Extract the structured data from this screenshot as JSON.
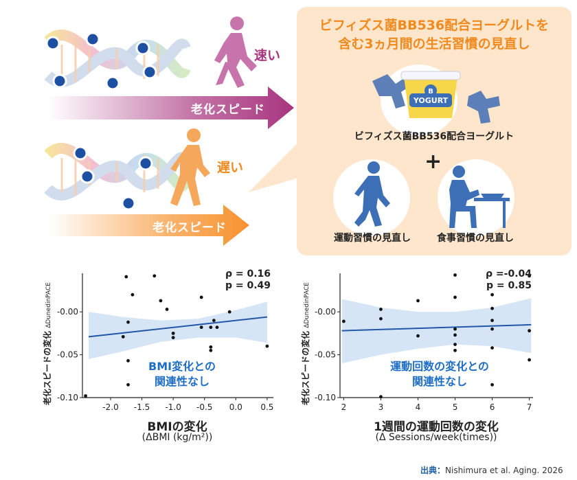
{
  "illustration": {
    "fast_speed_label": "老化スピード",
    "fast_word": "速い",
    "slow_speed_label": "老化スピード",
    "slow_word": "遅い",
    "colors": {
      "fast": "#a8357f",
      "slow": "#f7922f",
      "marker": "#1d4fa3"
    }
  },
  "intervention": {
    "title_line1": "ビフィズス菌BB536配合ヨーグルトを",
    "title_line2": "含む3ヵ月間の生活習慣の見直し",
    "yogurt_caption": "ビフィズス菌BB536配合ヨーグルト",
    "yogurt_cup_text": "YOGURT",
    "yogurt_badge": "B",
    "plus_sign": "+",
    "exercise_caption": "運動習慣の見直し",
    "diet_caption": "食事習慣の見直し",
    "icons": [
      "bifidobacteria-icon",
      "yogurt-cup-icon",
      "walking-person-icon",
      "eating-person-icon"
    ]
  },
  "chart_data": [
    {
      "type": "scatter",
      "ylabel": "老化スピードの変化",
      "ylabel_sub": "ΔDunedinPACE",
      "xlabel": "BMIの変化",
      "xlabel_sub": "(ΔBMI (kg/m²))",
      "xlim": [
        -2.45,
        0.6
      ],
      "ylim": [
        -0.1,
        0.045
      ],
      "x_ticks": [
        -2.0,
        -1.5,
        -1.0,
        -0.5,
        0.0,
        0.5
      ],
      "x_tick_labels": [
        "-2.0",
        "-1.5",
        "-1.0",
        "-0.5",
        "0.0",
        "0.5"
      ],
      "y_ticks": [
        0.0,
        -0.05,
        -0.1
      ],
      "y_tick_labels": [
        "-0.00",
        "-0.05",
        "-0.10"
      ],
      "stat_rho": "ρ = 0.16",
      "stat_p": "p = 0.49",
      "annotation_line1": "BMI変化との",
      "annotation_line2": "関連性なし",
      "trend": {
        "x": [
          -2.35,
          0.5
        ],
        "y": [
          -0.029,
          -0.006
        ]
      },
      "band": {
        "x": [
          -2.35,
          -1.8,
          -1.2,
          -0.6,
          0.0,
          0.5
        ],
        "upper": [
          0.0,
          -0.006,
          -0.01,
          -0.008,
          0.002,
          0.012
        ],
        "lower": [
          -0.055,
          -0.046,
          -0.035,
          -0.03,
          -0.03,
          -0.036
        ]
      },
      "points": [
        {
          "x": -2.4,
          "y": -0.098
        },
        {
          "x": -1.75,
          "y": 0.041
        },
        {
          "x": -1.65,
          "y": 0.02
        },
        {
          "x": -1.3,
          "y": 0.042
        },
        {
          "x": -1.2,
          "y": 0.013
        },
        {
          "x": -1.1,
          "y": 0.003
        },
        {
          "x": -1.72,
          "y": -0.012
        },
        {
          "x": -1.8,
          "y": -0.029
        },
        {
          "x": -1.72,
          "y": -0.057
        },
        {
          "x": -1.72,
          "y": -0.085
        },
        {
          "x": -1.0,
          "y": -0.025
        },
        {
          "x": -1.0,
          "y": -0.03
        },
        {
          "x": -0.55,
          "y": 0.017
        },
        {
          "x": -0.55,
          "y": -0.018
        },
        {
          "x": -0.4,
          "y": -0.018
        },
        {
          "x": -0.35,
          "y": -0.01
        },
        {
          "x": -0.4,
          "y": -0.041
        },
        {
          "x": -0.4,
          "y": -0.045
        },
        {
          "x": -0.3,
          "y": -0.018
        },
        {
          "x": -0.1,
          "y": 0.0
        },
        {
          "x": 0.5,
          "y": -0.04
        }
      ],
      "colors": {
        "trend": "#2156a8",
        "band": "#cfe0f3",
        "points": "#111111"
      }
    },
    {
      "type": "scatter",
      "ylabel": "老化スピードの変化",
      "ylabel_sub": "ΔDunedinPACE",
      "xlabel": "1週間の運動回数の変化",
      "xlabel_sub": "(Δ Sessions/week(times))",
      "xlim": [
        1.9,
        7.1
      ],
      "ylim": [
        -0.1,
        0.045
      ],
      "x_ticks": [
        2,
        3,
        4,
        5,
        6,
        7
      ],
      "x_tick_labels": [
        "2",
        "3",
        "4",
        "5",
        "6",
        "7"
      ],
      "y_ticks": [
        0.0,
        -0.05,
        -0.1
      ],
      "y_tick_labels": [
        "-0.00",
        "-0.05",
        "-0.10"
      ],
      "stat_rho": "ρ =-0.04",
      "stat_p": "p = 0.85",
      "annotation_line1": "運動回数の変化との",
      "annotation_line2": "関連性なし",
      "trend": {
        "x": [
          1.95,
          7.05
        ],
        "y": [
          -0.022,
          -0.015
        ]
      },
      "band": {
        "x": [
          1.95,
          3.0,
          4.0,
          5.0,
          6.0,
          7.05
        ],
        "upper": [
          0.015,
          0.005,
          0.0,
          0.0,
          0.005,
          0.016
        ],
        "lower": [
          -0.06,
          -0.05,
          -0.043,
          -0.038,
          -0.04,
          -0.048
        ]
      },
      "points": [
        {
          "x": 2.0,
          "y": -0.011
        },
        {
          "x": 3.0,
          "y": 0.003
        },
        {
          "x": 3.0,
          "y": -0.008
        },
        {
          "x": 3.0,
          "y": -0.099
        },
        {
          "x": 4.0,
          "y": 0.013
        },
        {
          "x": 4.0,
          "y": -0.028
        },
        {
          "x": 5.0,
          "y": 0.043
        },
        {
          "x": 5.0,
          "y": 0.017
        },
        {
          "x": 5.0,
          "y": -0.02
        },
        {
          "x": 5.0,
          "y": -0.027
        },
        {
          "x": 5.0,
          "y": -0.038
        },
        {
          "x": 5.0,
          "y": -0.045
        },
        {
          "x": 6.0,
          "y": 0.02
        },
        {
          "x": 6.0,
          "y": 0.004
        },
        {
          "x": 6.0,
          "y": -0.01
        },
        {
          "x": 6.0,
          "y": -0.02
        },
        {
          "x": 6.0,
          "y": -0.042
        },
        {
          "x": 6.0,
          "y": -0.085
        },
        {
          "x": 7.0,
          "y": 0.042
        },
        {
          "x": 7.0,
          "y": -0.022
        },
        {
          "x": 7.0,
          "y": -0.056
        }
      ],
      "colors": {
        "trend": "#2156a8",
        "band": "#cfe0f3",
        "points": "#111111"
      }
    }
  ],
  "source": {
    "label": "出典：",
    "text": "Nishimura et al. Aging. 2026"
  }
}
